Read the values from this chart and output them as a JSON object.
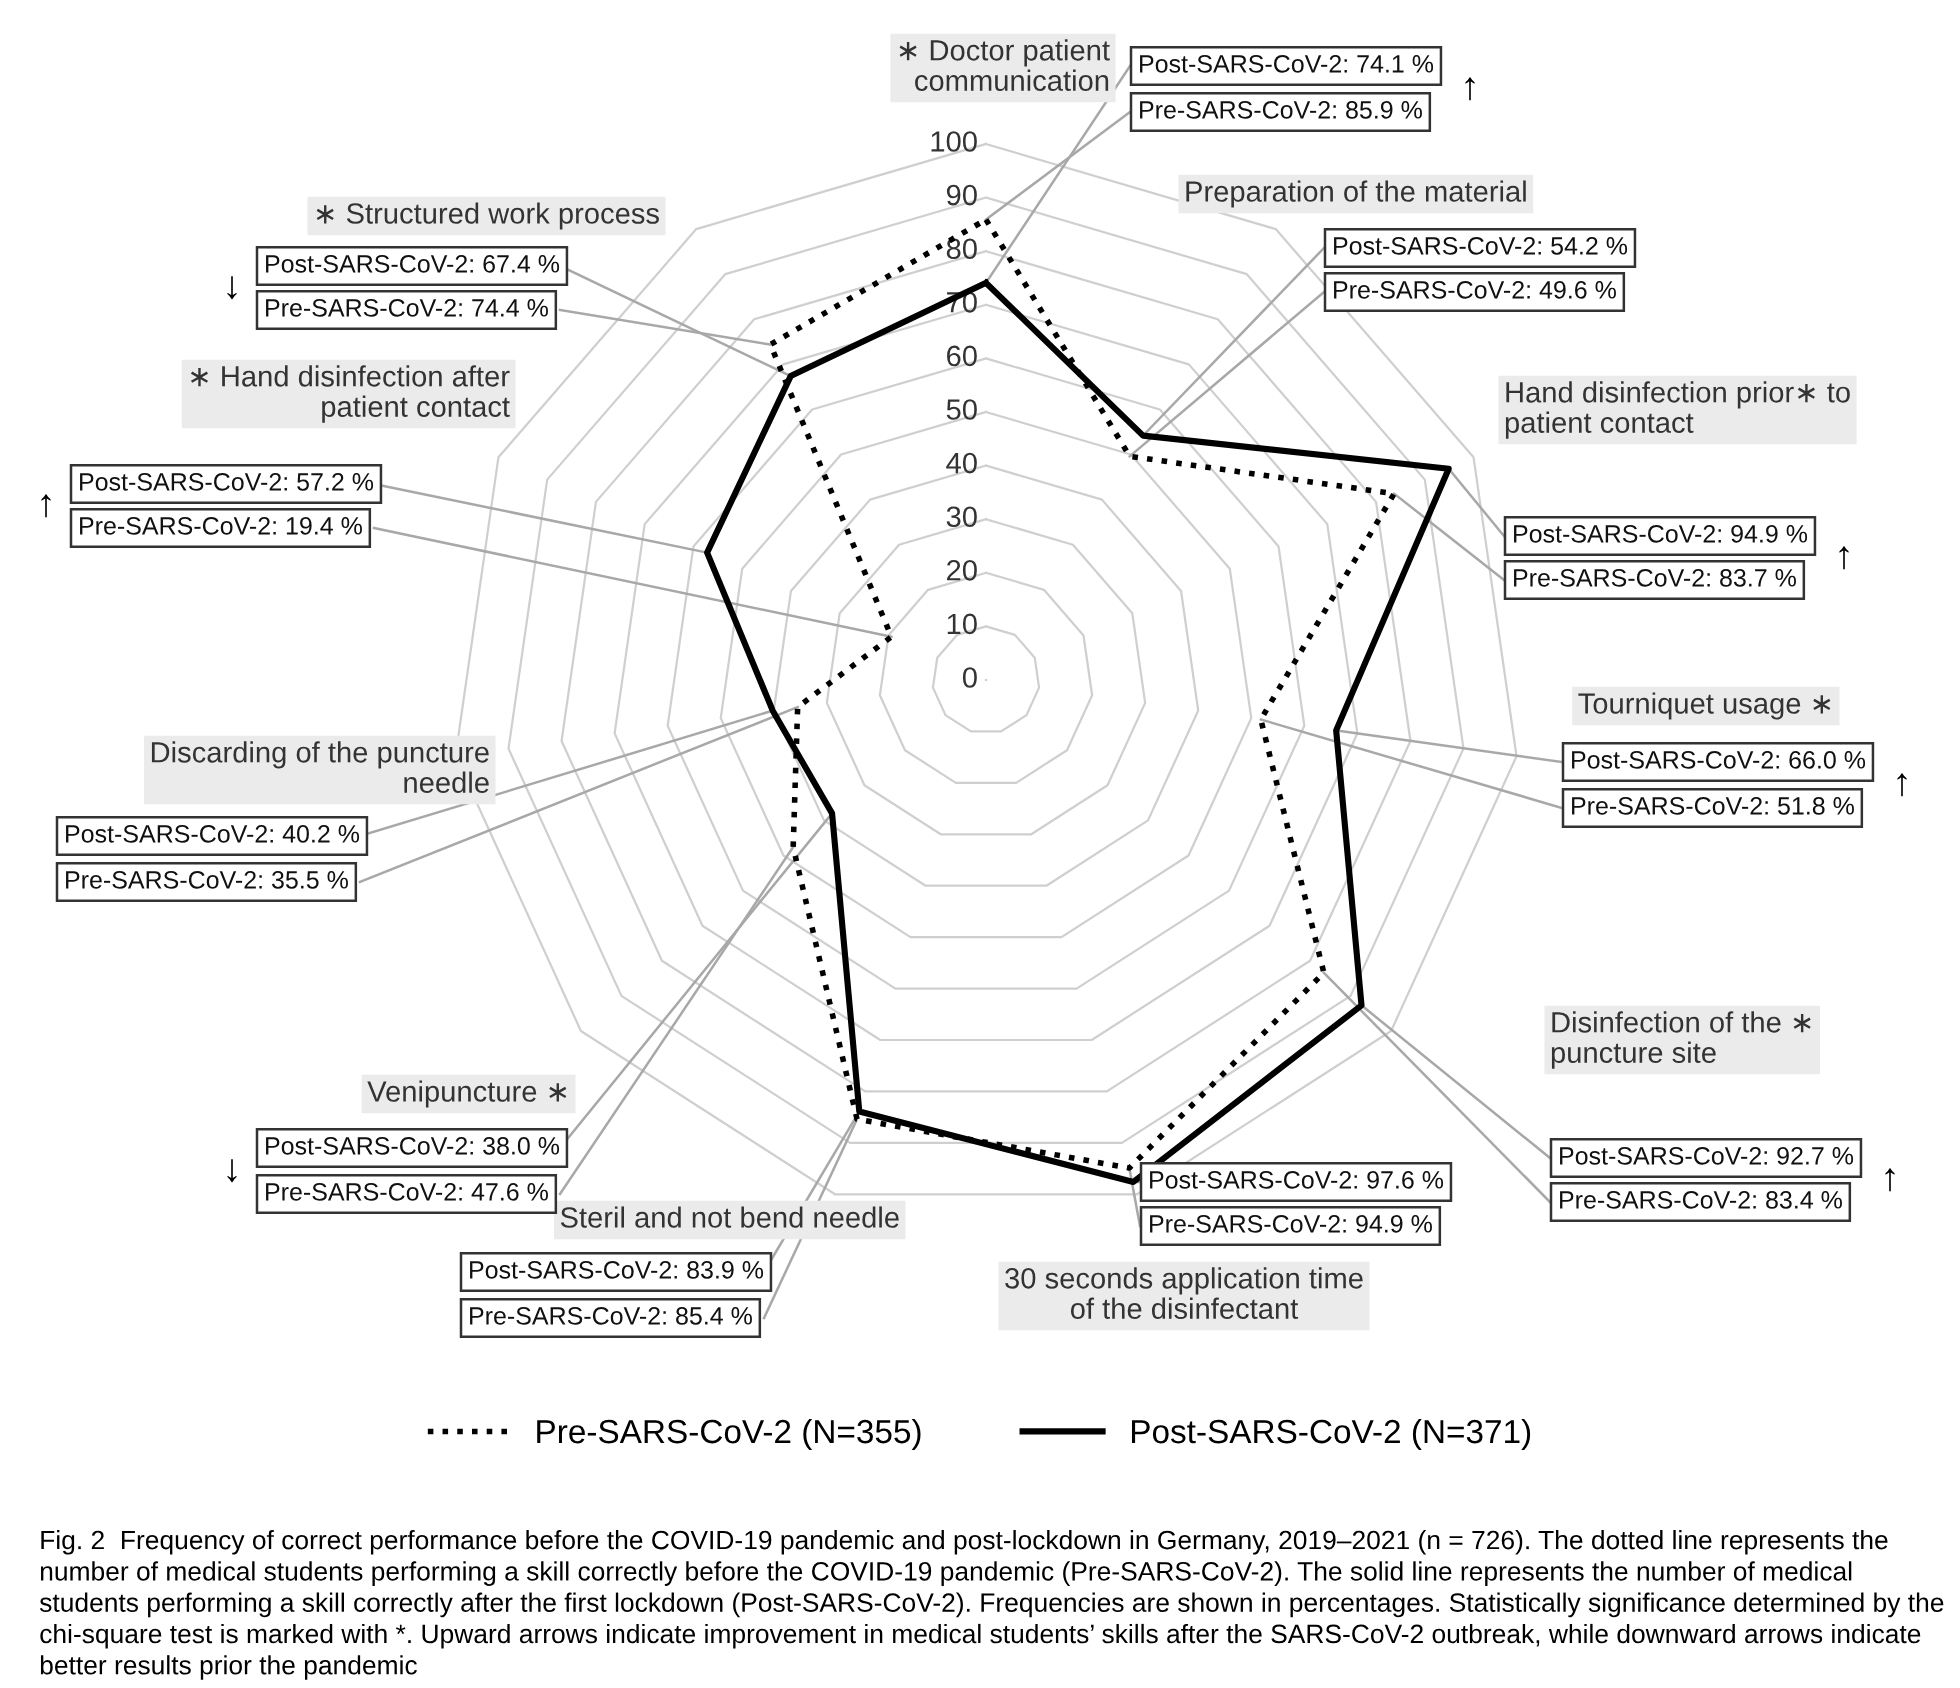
{
  "chart_data": {
    "type": "radar",
    "categories": [
      "∗ Doctor patient\ncommunication",
      "Preparation of the material",
      "Hand disinfection prior∗ to\npatient contact",
      "Tourniquet usage ∗",
      "Disinfection of the ∗\npuncture site",
      "30 seconds application time\nof the disinfectant",
      "Steril and not bend needle",
      "Venipuncture ∗",
      "Discarding of the puncture\nneedle",
      "∗ Hand disinfection after\npatient contact",
      "∗ Structured work process"
    ],
    "series": [
      {
        "name": "Pre-SARS-CoV-2 (N=355)",
        "color": "#000000",
        "line_style": "dotted",
        "values": [
          85.9,
          49.6,
          83.7,
          51.8,
          83.4,
          94.9,
          85.4,
          47.6,
          35.5,
          19.4,
          74.4
        ],
        "value_labels": [
          "Pre-SARS-CoV-2: 85.9 %",
          "Pre-SARS-CoV-2: 49.6 %",
          "Pre-SARS-CoV-2: 83.7 %",
          "Pre-SARS-CoV-2: 51.8 %",
          "Pre-SARS-CoV-2: 83.4 %",
          "Pre-SARS-CoV-2: 94.9 %",
          "Pre-SARS-CoV-2: 85.4 %",
          "Pre-SARS-CoV-2: 47.6 %",
          "Pre-SARS-CoV-2: 35.5 %",
          "Pre-SARS-CoV-2: 19.4 %",
          "Pre-SARS-CoV-2: 74.4 %"
        ]
      },
      {
        "name": "Post-SARS-CoV-2 (N=371)",
        "color": "#000000",
        "line_style": "solid",
        "values": [
          74.1,
          54.2,
          94.9,
          66.0,
          92.7,
          97.6,
          83.9,
          38.0,
          40.2,
          57.2,
          67.4
        ],
        "value_labels": [
          "Post-SARS-CoV-2: 74.1 %",
          "Post-SARS-CoV-2: 54.2 %",
          "Post-SARS-CoV-2: 94.9 %",
          "Post-SARS-CoV-2: 66.0 %",
          "Post-SARS-CoV-2: 92.7 %",
          "Post-SARS-CoV-2: 97.6 %",
          "Post-SARS-CoV-2: 83.9 %",
          "Post-SARS-CoV-2: 38.0 %",
          "Post-SARS-CoV-2: 40.2 %",
          "Post-SARS-CoV-2: 57.2 %",
          "Post-SARS-CoV-2: 67.4 %"
        ]
      }
    ],
    "ylim": [
      0,
      100
    ],
    "yticks": [
      0,
      10,
      20,
      30,
      40,
      50,
      60,
      70,
      80,
      90,
      100
    ],
    "grid": true,
    "legend": "bottom",
    "marker": "none",
    "annotations": [
      {
        "text": "↑",
        "x": "∗ Doctor patient\ncommunication"
      },
      {
        "text": "↑",
        "x": "Hand disinfection prior∗ to\npatient contact"
      },
      {
        "text": "↑",
        "x": "Tourniquet usage ∗"
      },
      {
        "text": "↑",
        "x": "Disinfection of the ∗\npuncture site"
      },
      {
        "text": "↓",
        "x": "Venipuncture ∗"
      },
      {
        "text": "↑",
        "x": "∗ Hand disinfection after\npatient contact"
      },
      {
        "text": "↓",
        "x": "∗ Structured work process"
      },
      "Fig. 2  Frequency of correct performance before the COVID-19 pandemic and post-lockdown in Germany, 2019–2021 (n = 726). The dotted line represents the number of medical students performing a skill correctly before the COVID-19 pandemic (Pre-SARS-CoV-2). The solid line represents the number of medical students performing a skill correctly after the first lockdown (Post-SARS-CoV-2). Frequencies are shown in percentages. Statistically significance determined by the chi-square test is marked with *. Upward arrows indicate improvement in medical students’ skills after the SARS-CoV-2 outbreak, while downward arrows indicate better results prior the pandemic"
    ]
  }
}
